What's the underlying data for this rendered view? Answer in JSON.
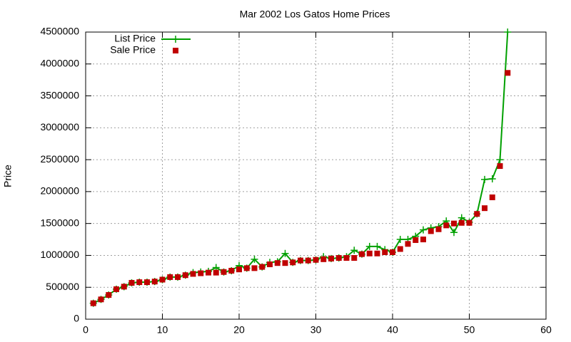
{
  "chart_data": {
    "type": "line",
    "title": "Mar 2002 Los Gatos Home Prices",
    "ylabel": "Price",
    "x": [
      1,
      2,
      3,
      4,
      5,
      6,
      7,
      8,
      9,
      10,
      11,
      12,
      13,
      14,
      15,
      16,
      17,
      18,
      19,
      20,
      21,
      22,
      23,
      24,
      25,
      26,
      27,
      28,
      29,
      30,
      31,
      32,
      33,
      34,
      35,
      36,
      37,
      38,
      39,
      40,
      41,
      42,
      43,
      44,
      45,
      46,
      47,
      48,
      49,
      50,
      51,
      52,
      53,
      54,
      55
    ],
    "series": [
      {
        "name": "List Price",
        "color": "#00a000",
        "line": true,
        "marker": "plus",
        "values": [
          250000,
          310000,
          380000,
          470000,
          510000,
          570000,
          580000,
          580000,
          590000,
          620000,
          660000,
          660000,
          690000,
          730000,
          740000,
          750000,
          810000,
          740000,
          760000,
          840000,
          800000,
          940000,
          820000,
          890000,
          900000,
          1030000,
          890000,
          920000,
          920000,
          930000,
          980000,
          950000,
          960000,
          980000,
          1080000,
          1020000,
          1140000,
          1140000,
          1090000,
          1050000,
          1250000,
          1250000,
          1300000,
          1400000,
          1430000,
          1450000,
          1540000,
          1360000,
          1590000,
          1520000,
          1650000,
          2190000,
          2200000,
          2500000,
          4500000
        ]
      },
      {
        "name": "Sale Price",
        "color": "#c00000",
        "line": false,
        "marker": "square",
        "values": [
          250000,
          310000,
          380000,
          470000,
          510000,
          570000,
          580000,
          580000,
          590000,
          620000,
          660000,
          660000,
          690000,
          710000,
          720000,
          730000,
          730000,
          740000,
          760000,
          780000,
          800000,
          800000,
          820000,
          860000,
          880000,
          880000,
          890000,
          920000,
          920000,
          930000,
          940000,
          950000,
          960000,
          960000,
          960000,
          1020000,
          1030000,
          1030000,
          1050000,
          1050000,
          1100000,
          1180000,
          1240000,
          1250000,
          1380000,
          1410000,
          1470000,
          1500000,
          1510000,
          1510000,
          1650000,
          1740000,
          1910000,
          2400000,
          3860000
        ]
      }
    ],
    "xlim": [
      0,
      60
    ],
    "xticks": [
      0,
      10,
      20,
      30,
      40,
      50,
      60
    ],
    "ylim": [
      0,
      4500000
    ],
    "yticks": [
      0,
      500000,
      1000000,
      1500000,
      2000000,
      2500000,
      3000000,
      3500000,
      4000000,
      4500000
    ],
    "grid": true,
    "legend": "top-left"
  }
}
